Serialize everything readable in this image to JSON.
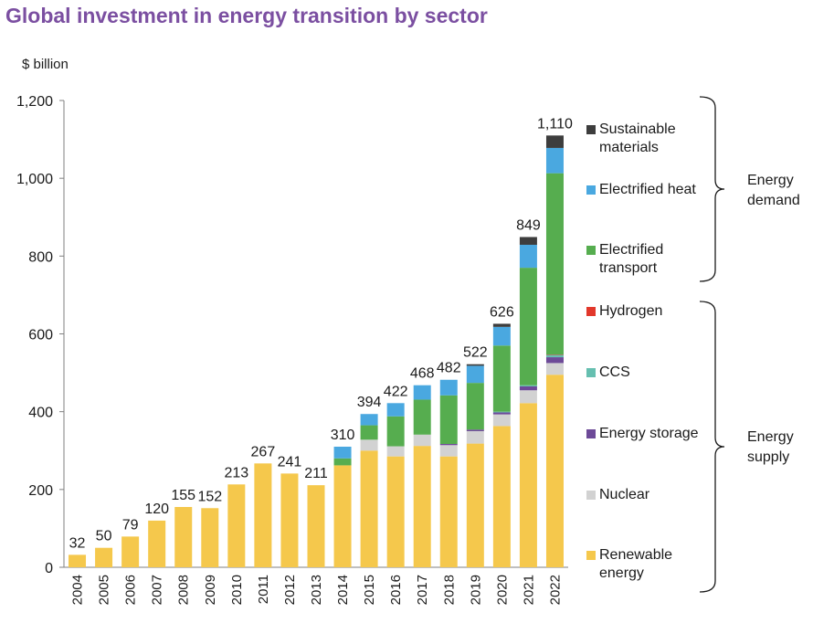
{
  "title": "Global investment in energy transition by sector",
  "unit_label": "$ billion",
  "groups": {
    "demand": [
      "Energy",
      "demand"
    ],
    "supply": [
      "Energy",
      "supply"
    ]
  },
  "legend": [
    {
      "name": "Sustainable materials",
      "lines": [
        "Sustainable",
        "materials"
      ],
      "color": "#3d3d3d"
    },
    {
      "name": "Electrified heat",
      "lines": [
        "Electrified heat"
      ],
      "color": "#4aa8e0"
    },
    {
      "name": "Electrified transport",
      "lines": [
        "Electrified",
        "transport"
      ],
      "color": "#56ad4f"
    },
    {
      "name": "Hydrogen",
      "lines": [
        "Hydrogen"
      ],
      "color": "#e2382b"
    },
    {
      "name": "CCS",
      "lines": [
        "CCS"
      ],
      "color": "#66bfb0"
    },
    {
      "name": "Energy storage",
      "lines": [
        "Energy storage"
      ],
      "color": "#6d4a98"
    },
    {
      "name": "Nuclear",
      "lines": [
        "Nuclear"
      ],
      "color": "#d2d2d2"
    },
    {
      "name": "Renewable energy",
      "lines": [
        "Renewable",
        "energy"
      ],
      "color": "#f5c84c"
    }
  ],
  "chart_data": {
    "type": "bar",
    "stacked": true,
    "title": "Global investment in energy transition by sector",
    "ylabel": "$ billion",
    "ylim": [
      0,
      1200
    ],
    "yticks": [
      0,
      200,
      400,
      600,
      800,
      1000,
      1200
    ],
    "ytick_labels": [
      "0",
      "200",
      "400",
      "600",
      "800",
      "1,000",
      "1,200"
    ],
    "grid": false,
    "legend_position": "right",
    "categories": [
      "2004",
      "2005",
      "2006",
      "2007",
      "2008",
      "2009",
      "2010",
      "2011",
      "2012",
      "2013",
      "2014",
      "2015",
      "2016",
      "2017",
      "2018",
      "2019",
      "2020",
      "2021",
      "2022"
    ],
    "totals": [
      32,
      50,
      79,
      120,
      155,
      152,
      213,
      267,
      241,
      211,
      310,
      394,
      422,
      468,
      482,
      522,
      626,
      849,
      1110
    ],
    "total_labels": [
      "32",
      "50",
      "79",
      "120",
      "155",
      "152",
      "213",
      "267",
      "241",
      "211",
      "310",
      "394",
      "422",
      "468",
      "482",
      "522",
      "626",
      "849",
      "1,110"
    ],
    "series": [
      {
        "name": "Renewable energy",
        "values": [
          32,
          50,
          79,
          120,
          155,
          152,
          213,
          267,
          241,
          211,
          262,
          300,
          285,
          312,
          285,
          318,
          363,
          422,
          495
        ]
      },
      {
        "name": "Nuclear",
        "values": [
          0,
          0,
          0,
          0,
          0,
          0,
          0,
          0,
          0,
          0,
          0,
          28,
          26,
          29,
          29,
          32,
          30,
          33,
          30
        ]
      },
      {
        "name": "Energy storage",
        "values": [
          0,
          0,
          0,
          0,
          0,
          0,
          0,
          0,
          0,
          0,
          0,
          0,
          0,
          0,
          3,
          4,
          5,
          10,
          15
        ]
      },
      {
        "name": "CCS",
        "values": [
          0,
          0,
          0,
          0,
          0,
          0,
          0,
          0,
          0,
          0,
          0,
          0,
          0,
          0,
          0,
          0,
          2,
          3,
          6
        ]
      },
      {
        "name": "Hydrogen",
        "values": [
          0,
          0,
          0,
          0,
          0,
          0,
          0,
          0,
          0,
          0,
          0,
          0,
          0,
          0,
          0,
          0,
          0,
          0,
          1
        ]
      },
      {
        "name": "Electrified transport",
        "values": [
          0,
          0,
          0,
          0,
          0,
          0,
          0,
          0,
          0,
          0,
          18,
          37,
          77,
          90,
          125,
          120,
          170,
          302,
          466
        ]
      },
      {
        "name": "Electrified heat",
        "values": [
          0,
          0,
          0,
          0,
          0,
          0,
          0,
          0,
          0,
          0,
          30,
          29,
          34,
          37,
          40,
          44,
          48,
          59,
          65
        ]
      },
      {
        "name": "Sustainable materials",
        "values": [
          0,
          0,
          0,
          0,
          0,
          0,
          0,
          0,
          0,
          0,
          0,
          0,
          0,
          0,
          0,
          4,
          8,
          20,
          32
        ]
      }
    ]
  }
}
